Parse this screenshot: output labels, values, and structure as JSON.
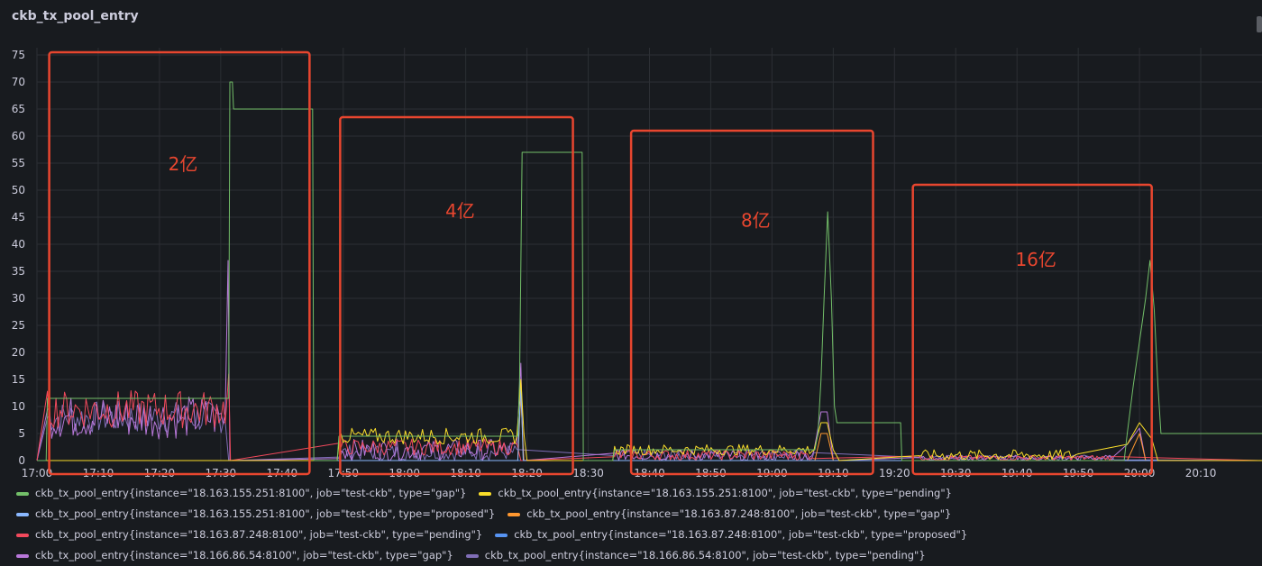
{
  "panel": {
    "title": "ckb_tx_pool_entry"
  },
  "chart_data": {
    "type": "line",
    "title": "ckb_tx_pool_entry",
    "xlabel": "",
    "ylabel": "",
    "ylim": [
      0,
      75
    ],
    "y_ticks": [
      0,
      5,
      10,
      15,
      20,
      25,
      30,
      35,
      40,
      45,
      50,
      55,
      60,
      65,
      70,
      75
    ],
    "x_range_minutes": [
      0,
      200
    ],
    "x_tick_labels": [
      "17:00",
      "17:10",
      "17:20",
      "17:30",
      "17:40",
      "17:50",
      "18:00",
      "18:10",
      "18:20",
      "18:30",
      "18:40",
      "18:50",
      "19:00",
      "19:10",
      "19:20",
      "19:30",
      "19:40",
      "19:50",
      "20:00",
      "20:10"
    ],
    "x_tick_minutes": [
      0,
      10,
      20,
      30,
      40,
      50,
      60,
      70,
      80,
      90,
      100,
      110,
      120,
      130,
      140,
      150,
      160,
      170,
      180,
      190
    ],
    "grid": true,
    "legend_position": "bottom",
    "annotations": [
      {
        "label": "2亿",
        "box_minutes": [
          2,
          44.5
        ],
        "box_y": [
          75.5,
          -2.5
        ]
      },
      {
        "label": "4亿",
        "box_minutes": [
          49.5,
          87.5
        ],
        "box_y": [
          63.5,
          -2.5
        ]
      },
      {
        "label": "8亿",
        "box_minutes": [
          97,
          136.5
        ],
        "box_y": [
          61,
          -2.5
        ]
      },
      {
        "label": "16亿",
        "box_minutes": [
          143,
          182
        ],
        "box_y": [
          51,
          -2.5
        ]
      }
    ],
    "series": [
      {
        "name": "ckb_tx_pool_entry{instance=\"18.163.155.251:8100\", job=\"test-ckb\", type=\"gap\"}",
        "color": "#73bf69",
        "points": [
          [
            0,
            0
          ],
          [
            1.5,
            0
          ],
          [
            1.7,
            11.5
          ],
          [
            31.3,
            11.5
          ],
          [
            31.5,
            70
          ],
          [
            31.9,
            70
          ],
          [
            32.1,
            65
          ],
          [
            45,
            65
          ],
          [
            45.2,
            0
          ],
          [
            49,
            0
          ],
          [
            49.3,
            4.5
          ],
          [
            78.5,
            4.5
          ],
          [
            78.8,
            15
          ],
          [
            79.2,
            57
          ],
          [
            89,
            57
          ],
          [
            89.2,
            0
          ],
          [
            94,
            0
          ],
          [
            94.3,
            2
          ],
          [
            127,
            2
          ],
          [
            127.5,
            5
          ],
          [
            128,
            15
          ],
          [
            128.5,
            30
          ],
          [
            129.1,
            46
          ],
          [
            129.7,
            30
          ],
          [
            130.2,
            10
          ],
          [
            130.6,
            7
          ],
          [
            141,
            7
          ],
          [
            141.2,
            0
          ],
          [
            177.5,
            0
          ],
          [
            178,
            5
          ],
          [
            179,
            14
          ],
          [
            180,
            22
          ],
          [
            181,
            30
          ],
          [
            181.7,
            37
          ],
          [
            182.4,
            28
          ],
          [
            183,
            14
          ],
          [
            183.5,
            5
          ],
          [
            200,
            5
          ]
        ]
      },
      {
        "name": "ckb_tx_pool_entry{instance=\"18.163.155.251:8100\", job=\"test-ckb\", type=\"pending\"}",
        "color": "#fade2a",
        "jitter": [
          [
            49.3,
            78.5,
            3,
            6
          ],
          [
            94.3,
            127,
            1,
            3
          ],
          [
            144,
            170,
            0,
            2
          ]
        ],
        "points": [
          [
            0,
            0
          ],
          [
            49,
            0
          ],
          [
            49.3,
            5
          ],
          [
            78.5,
            5
          ],
          [
            79,
            15
          ],
          [
            79.5,
            5
          ],
          [
            80,
            0
          ],
          [
            94,
            0
          ],
          [
            127,
            2
          ],
          [
            128,
            7
          ],
          [
            129,
            7
          ],
          [
            130,
            2
          ],
          [
            131,
            0
          ],
          [
            144,
            0
          ],
          [
            170,
            1
          ],
          [
            178,
            3
          ],
          [
            180,
            7
          ],
          [
            182,
            4
          ],
          [
            183,
            0
          ],
          [
            200,
            0
          ]
        ]
      },
      {
        "name": "ckb_tx_pool_entry{instance=\"18.163.155.251:8100\", job=\"test-ckb\", type=\"proposed\"}",
        "color": "#8ab8ff",
        "points": [
          [
            0,
            0
          ],
          [
            78.5,
            0
          ],
          [
            79,
            14
          ],
          [
            79.4,
            0
          ],
          [
            200,
            0
          ]
        ]
      },
      {
        "name": "ckb_tx_pool_entry{instance=\"18.163.87.248:8100\", job=\"test-ckb\", type=\"gap\"}",
        "color": "#ff9830",
        "points": [
          [
            0,
            0
          ],
          [
            78.5,
            0
          ],
          [
            79,
            12
          ],
          [
            79.5,
            0
          ],
          [
            127,
            0
          ],
          [
            128,
            5
          ],
          [
            129,
            5
          ],
          [
            130,
            0
          ],
          [
            178,
            0
          ],
          [
            180,
            5
          ],
          [
            181,
            0
          ],
          [
            200,
            0
          ]
        ]
      },
      {
        "name": "ckb_tx_pool_entry{instance=\"18.163.87.248:8100\", job=\"test-ckb\", type=\"pending\"}",
        "color": "#f2495c",
        "jitter": [
          [
            1.7,
            31,
            6,
            13
          ],
          [
            49.3,
            78.5,
            1,
            4
          ],
          [
            94.3,
            127,
            0,
            2
          ],
          [
            144,
            176,
            0,
            1
          ]
        ],
        "points": [
          [
            0,
            0
          ],
          [
            1.7,
            8
          ],
          [
            31,
            8
          ],
          [
            31.3,
            16
          ],
          [
            31.6,
            0
          ],
          [
            49.3,
            0
          ],
          [
            78.5,
            2
          ],
          [
            79,
            0
          ],
          [
            200,
            0
          ]
        ]
      },
      {
        "name": "ckb_tx_pool_entry{instance=\"18.163.87.248:8100\", job=\"test-ckb\", type=\"proposed\"}",
        "color": "#5794f2",
        "points": [
          [
            0,
            0
          ],
          [
            200,
            0
          ]
        ]
      },
      {
        "name": "ckb_tx_pool_entry{instance=\"18.166.86.54:8100\", job=\"test-ckb\", type=\"gap\"}",
        "color": "#b877d9",
        "jitter": [
          [
            1.7,
            31,
            4,
            12
          ],
          [
            49.3,
            78.5,
            0,
            4
          ],
          [
            94.3,
            127,
            0,
            2
          ],
          [
            144,
            176,
            0,
            1
          ]
        ],
        "points": [
          [
            0,
            0
          ],
          [
            1.7,
            8
          ],
          [
            31,
            8
          ],
          [
            31.2,
            37
          ],
          [
            31.5,
            0
          ],
          [
            78.5,
            3
          ],
          [
            79,
            18
          ],
          [
            79.4,
            0
          ],
          [
            127,
            2
          ],
          [
            128,
            9
          ],
          [
            129,
            9
          ],
          [
            130,
            0
          ],
          [
            178,
            3
          ],
          [
            180,
            6
          ],
          [
            181,
            0
          ],
          [
            200,
            0
          ]
        ]
      },
      {
        "name": "ckb_tx_pool_entry{instance=\"18.166.86.54:8100\", job=\"test-ckb\", type=\"pending\"}",
        "color": "#806eb7",
        "jitter": [
          [
            1.7,
            31,
            5,
            11
          ],
          [
            49.3,
            78.5,
            0,
            3
          ],
          [
            94.3,
            127,
            0,
            2
          ],
          [
            144,
            176,
            0,
            1
          ]
        ],
        "points": [
          [
            0,
            0
          ],
          [
            1.7,
            7
          ],
          [
            31,
            7
          ],
          [
            31.3,
            0
          ],
          [
            200,
            0
          ]
        ]
      }
    ]
  },
  "legend_rows": [
    [
      0,
      1
    ],
    [
      2,
      3
    ],
    [
      4,
      5
    ],
    [
      6,
      7
    ]
  ]
}
